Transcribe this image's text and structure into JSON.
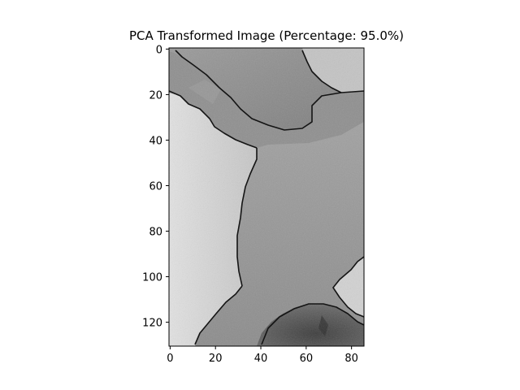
{
  "chart_data": {
    "type": "heatmap",
    "title": "PCA Transformed Image (Percentage: 95.0%)",
    "xlabel": "",
    "ylabel": "",
    "colormap": "gray",
    "image_shape": [
      131,
      86
    ],
    "xlim": [
      -0.5,
      85.5
    ],
    "ylim": [
      130.5,
      -0.5
    ],
    "xticks": [
      0,
      20,
      40,
      60,
      80
    ],
    "yticks": [
      0,
      20,
      40,
      60,
      80,
      100,
      120
    ],
    "grid": false,
    "regions": [
      {
        "name": "top-band",
        "shade": "mid-gray"
      },
      {
        "name": "left-field",
        "shade": "light-gray"
      },
      {
        "name": "center-field",
        "shade": "gray"
      },
      {
        "name": "top-right-patch",
        "shade": "light-gray"
      },
      {
        "name": "right-edge-patch",
        "shade": "light-gray"
      },
      {
        "name": "bottom-dark-blob",
        "shade": "dark-gray"
      }
    ],
    "boundary_color": "#141414"
  }
}
